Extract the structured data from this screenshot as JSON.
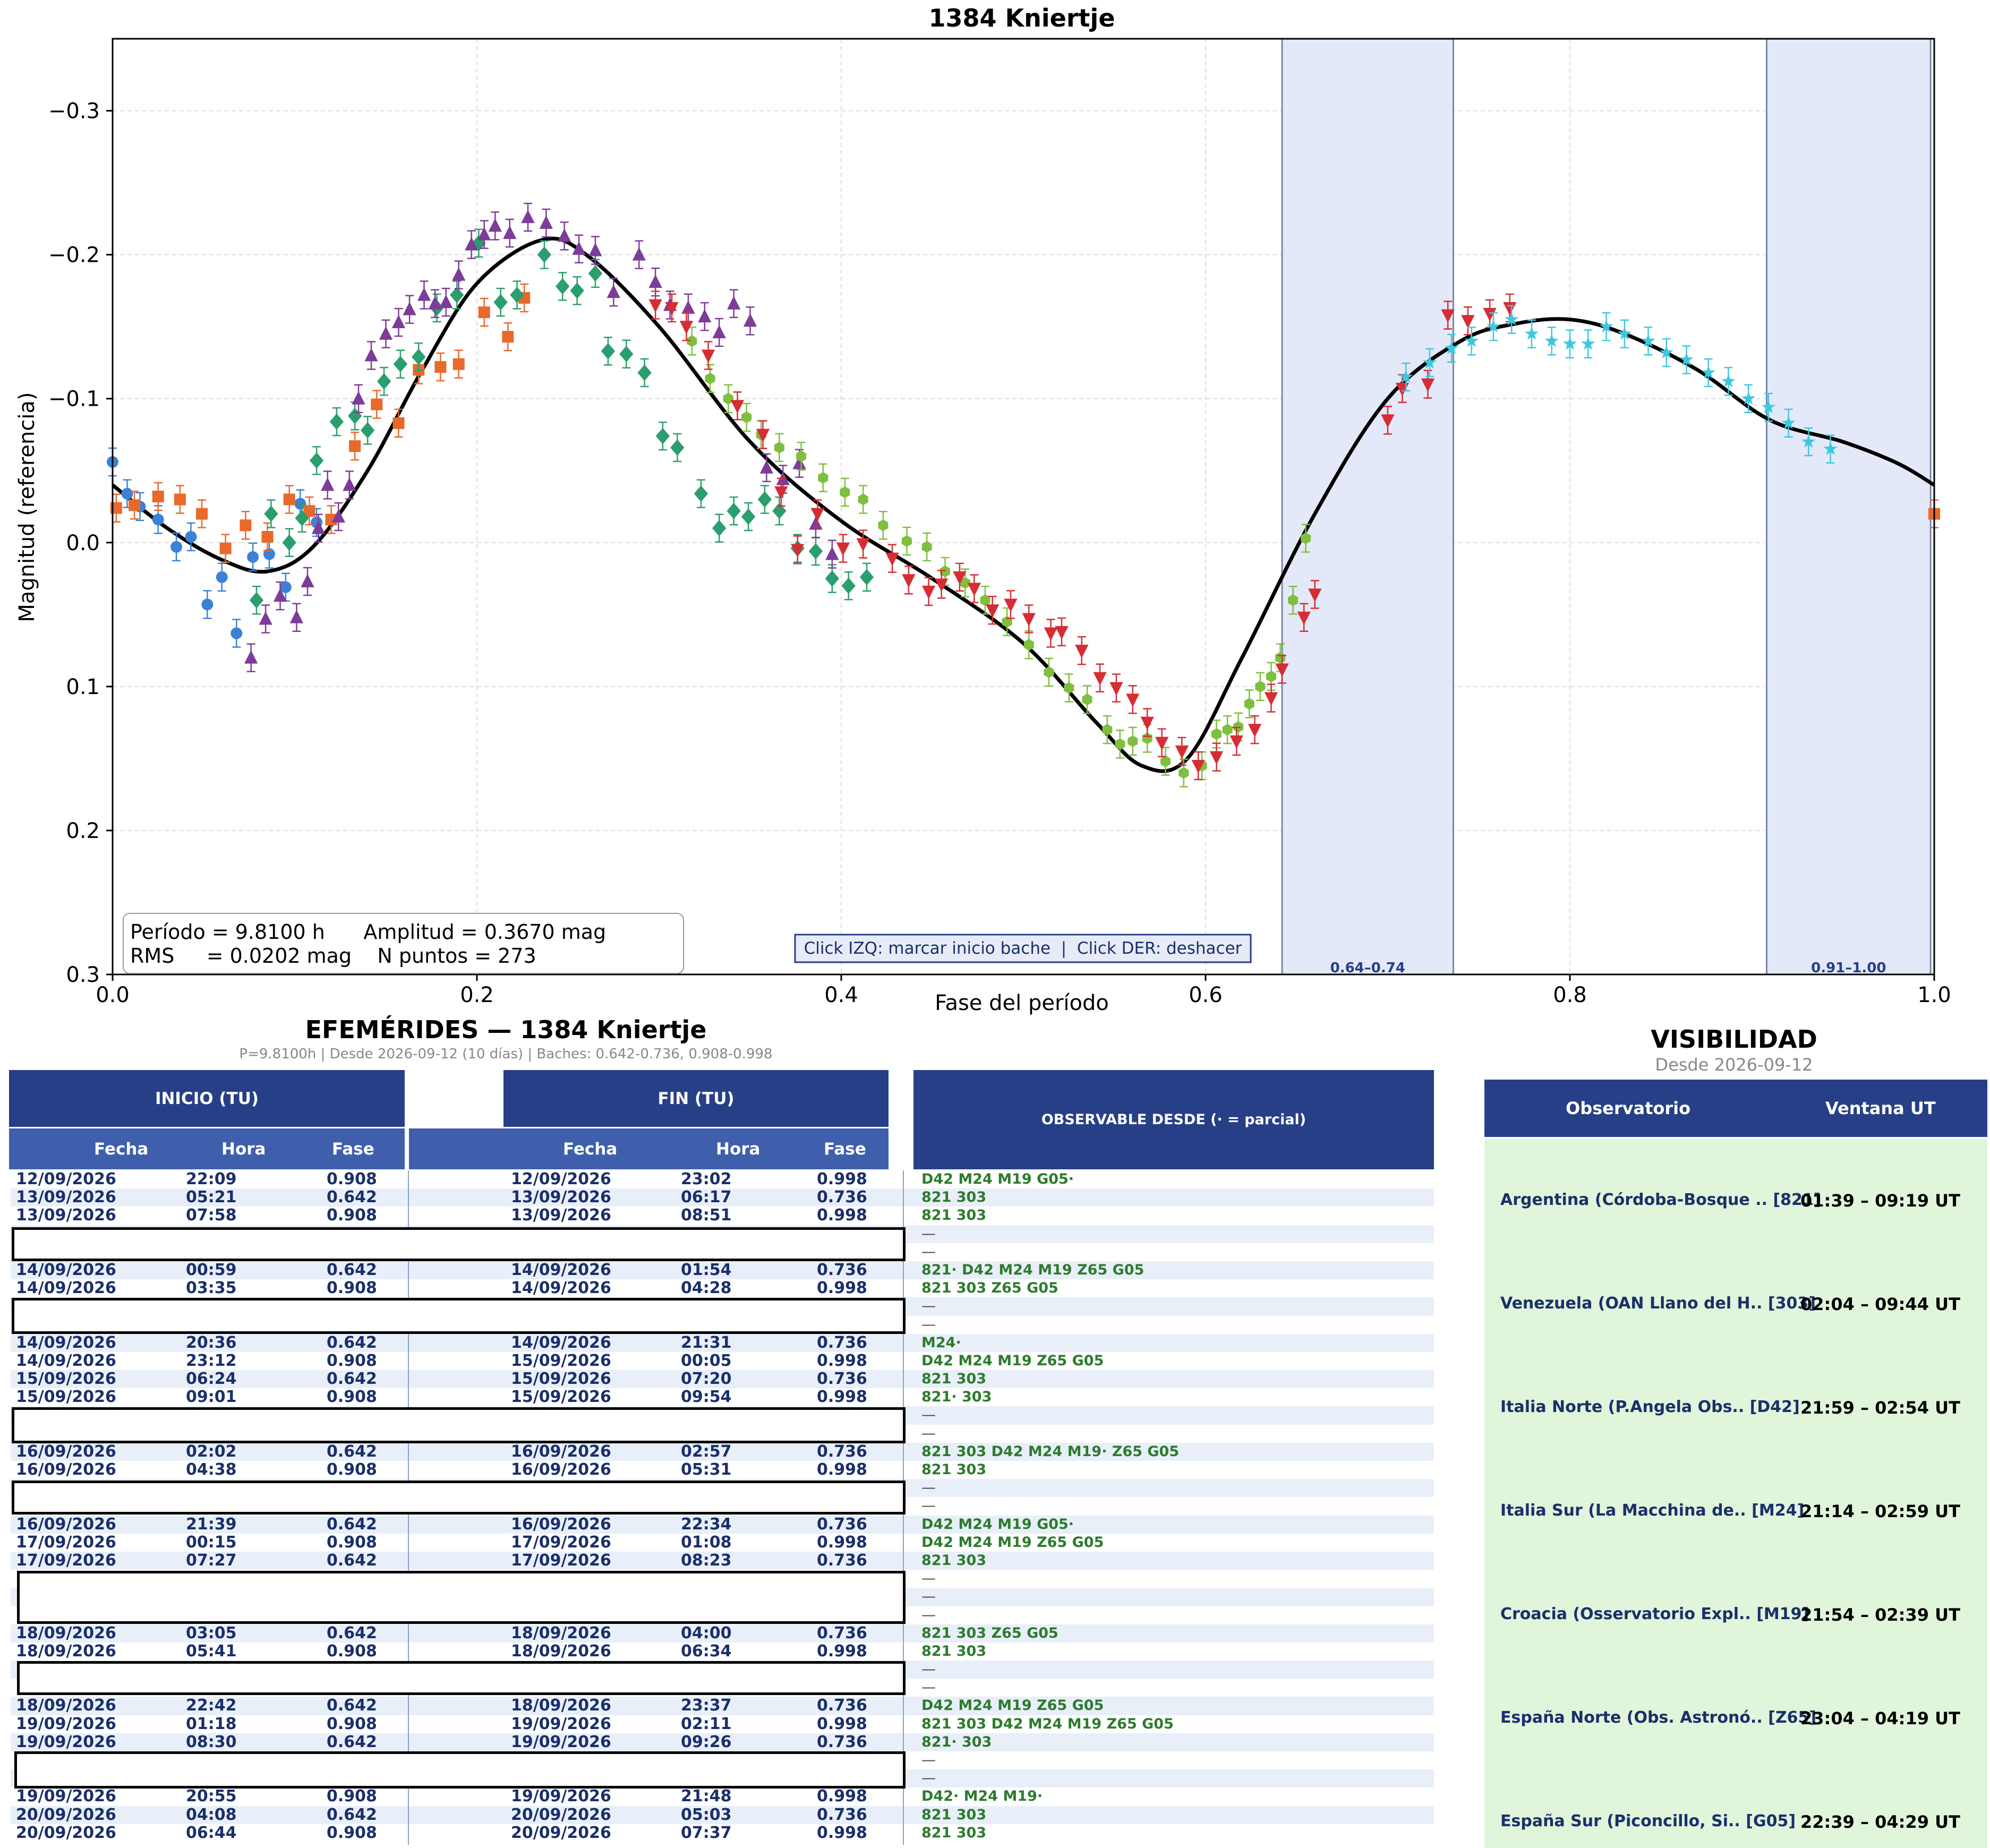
{
  "chart_data": {
    "type": "scatter",
    "title": "1384 Kniertje",
    "xlabel": "Fase del período",
    "ylabel": "Magnitud (referencia)",
    "xlim": [
      0.0,
      1.0
    ],
    "ylim": [
      0.3,
      -0.35
    ],
    "y_inverted": true,
    "grid": true,
    "x_ticks": [
      "0.0",
      "0.2",
      "0.4",
      "0.6",
      "0.8",
      "1.0"
    ],
    "y_ticks": [
      "−0.3",
      "−0.2",
      "−0.1",
      "0.0",
      "0.1",
      "0.2",
      "0.3"
    ],
    "info_box": {
      "line1": "Período = 9.8100 h      Amplitud = 0.3670 mag",
      "line2": "RMS     = 0.0202 mag    N puntos = 273"
    },
    "hint": "Click IZQ: marcar inicio bache  |  Click DER: deshacer",
    "gaps": [
      {
        "start": 0.642,
        "end": 0.736,
        "label": "0.64–0.74"
      },
      {
        "start": 0.908,
        "end": 0.998,
        "label": "0.91–1.00"
      }
    ],
    "fit_curve": {
      "x": [
        0.0,
        0.03,
        0.06,
        0.085,
        0.11,
        0.14,
        0.17,
        0.2,
        0.235,
        0.26,
        0.3,
        0.35,
        0.4,
        0.45,
        0.5,
        0.54,
        0.565,
        0.59,
        0.62,
        0.66,
        0.7,
        0.74,
        0.77,
        0.8,
        0.83,
        0.87,
        0.91,
        0.95,
        0.98,
        1.0
      ],
      "y": [
        -0.04,
        -0.01,
        0.012,
        0.02,
        0.003,
        -0.05,
        -0.12,
        -0.18,
        -0.21,
        -0.2,
        -0.15,
        -0.07,
        -0.015,
        0.025,
        0.07,
        0.125,
        0.155,
        0.15,
        0.08,
        -0.02,
        -0.1,
        -0.14,
        -0.152,
        -0.155,
        -0.145,
        -0.12,
        -0.085,
        -0.07,
        -0.055,
        -0.04
      ]
    },
    "series": [
      {
        "marker": "circle",
        "color": "#3b82d6",
        "x": [
          0.0,
          0.008,
          0.015,
          0.025,
          0.035,
          0.043,
          0.052,
          0.06,
          0.068,
          0.077,
          0.086,
          0.095,
          0.103,
          0.112
        ],
        "y": [
          -0.056,
          -0.034,
          -0.025,
          -0.016,
          0.003,
          -0.004,
          0.043,
          0.024,
          0.063,
          0.01,
          0.008,
          0.031,
          -0.027,
          -0.014
        ]
      },
      {
        "marker": "square",
        "color": "#e8692b",
        "x": [
          0.002,
          0.012,
          0.025,
          0.037,
          0.049,
          0.062,
          0.073,
          0.085,
          0.097,
          0.108,
          0.12,
          0.133,
          0.145,
          0.157,
          0.168,
          0.18,
          0.19,
          0.204,
          0.217,
          0.226,
          1.0
        ],
        "y": [
          -0.024,
          -0.026,
          -0.032,
          -0.03,
          -0.02,
          0.004,
          -0.012,
          -0.004,
          -0.03,
          -0.022,
          -0.016,
          -0.067,
          -0.096,
          -0.083,
          -0.12,
          -0.122,
          -0.124,
          -0.16,
          -0.143,
          -0.17,
          -0.02
        ]
      },
      {
        "marker": "diamond",
        "color": "#2b9e6e",
        "x": [
          0.079,
          0.087,
          0.097,
          0.104,
          0.112,
          0.123,
          0.133,
          0.14,
          0.149,
          0.158,
          0.168,
          0.178,
          0.189,
          0.201,
          0.213,
          0.222,
          0.237,
          0.247,
          0.255,
          0.265,
          0.272,
          0.282,
          0.292,
          0.302,
          0.31,
          0.323,
          0.333,
          0.341,
          0.349,
          0.358,
          0.366,
          0.376,
          0.386,
          0.395,
          0.404,
          0.414
        ],
        "y": [
          0.04,
          -0.02,
          0.0,
          -0.017,
          -0.057,
          -0.084,
          -0.088,
          -0.078,
          -0.112,
          -0.124,
          -0.129,
          -0.163,
          -0.172,
          -0.208,
          -0.167,
          -0.172,
          -0.2,
          -0.178,
          -0.175,
          -0.187,
          -0.133,
          -0.131,
          -0.118,
          -0.074,
          -0.066,
          -0.034,
          -0.01,
          -0.022,
          -0.018,
          -0.03,
          -0.022,
          0.004,
          0.006,
          0.025,
          0.03,
          0.024
        ]
      },
      {
        "marker": "triangle-up",
        "color": "#7d3c98",
        "x": [
          0.076,
          0.084,
          0.092,
          0.101,
          0.107,
          0.113,
          0.118,
          0.124,
          0.13,
          0.135,
          0.142,
          0.15,
          0.157,
          0.163,
          0.171,
          0.177,
          0.183,
          0.19,
          0.197,
          0.204,
          0.21,
          0.218,
          0.228,
          0.238,
          0.248,
          0.256,
          0.265,
          0.275,
          0.289,
          0.298,
          0.306,
          0.316,
          0.325,
          0.333,
          0.341,
          0.35,
          0.359,
          0.368,
          0.377,
          0.386,
          0.395
        ],
        "y": [
          0.08,
          0.053,
          0.037,
          0.052,
          0.027,
          -0.01,
          -0.04,
          -0.018,
          -0.04,
          -0.1,
          -0.13,
          -0.145,
          -0.153,
          -0.162,
          -0.172,
          -0.166,
          -0.167,
          -0.186,
          -0.207,
          -0.214,
          -0.22,
          -0.215,
          -0.226,
          -0.222,
          -0.213,
          -0.204,
          -0.203,
          -0.174,
          -0.2,
          -0.181,
          -0.165,
          -0.163,
          -0.157,
          -0.146,
          -0.166,
          -0.154,
          -0.052,
          -0.044,
          -0.055,
          -0.013,
          0.008
        ]
      },
      {
        "marker": "hexagon",
        "color": "#7fbf3f",
        "x": [
          0.318,
          0.328,
          0.338,
          0.348,
          0.356,
          0.366,
          0.378,
          0.39,
          0.402,
          0.412,
          0.423,
          0.436,
          0.447,
          0.457,
          0.468,
          0.479,
          0.491,
          0.503,
          0.514,
          0.525,
          0.535,
          0.546,
          0.553,
          0.56,
          0.568,
          0.578,
          0.588,
          0.598,
          0.606,
          0.612,
          0.618,
          0.624,
          0.63,
          0.636,
          0.641,
          0.648,
          0.655
        ],
        "y": [
          -0.14,
          -0.114,
          -0.1,
          -0.087,
          -0.075,
          -0.066,
          -0.06,
          -0.045,
          -0.035,
          -0.03,
          -0.012,
          -0.001,
          0.003,
          0.02,
          0.028,
          0.04,
          0.055,
          0.071,
          0.09,
          0.101,
          0.109,
          0.13,
          0.14,
          0.138,
          0.136,
          0.152,
          0.16,
          0.155,
          0.133,
          0.13,
          0.128,
          0.112,
          0.1,
          0.093,
          0.08,
          0.04,
          -0.003
        ]
      },
      {
        "marker": "triangle-down",
        "color": "#d62d34",
        "x": [
          0.298,
          0.307,
          0.315,
          0.327,
          0.343,
          0.357,
          0.367,
          0.376,
          0.387,
          0.401,
          0.412,
          0.428,
          0.437,
          0.448,
          0.455,
          0.465,
          0.473,
          0.483,
          0.493,
          0.503,
          0.515,
          0.521,
          0.532,
          0.542,
          0.551,
          0.56,
          0.568,
          0.576,
          0.587,
          0.596,
          0.606,
          0.617,
          0.627,
          0.636,
          0.642,
          0.654,
          0.66,
          0.7,
          0.708,
          0.722,
          0.733,
          0.744,
          0.756,
          0.767
        ],
        "y": [
          -0.165,
          -0.163,
          -0.15,
          -0.13,
          -0.095,
          -0.075,
          -0.035,
          0.005,
          -0.02,
          0.004,
          0.001,
          0.011,
          0.026,
          0.034,
          0.029,
          0.024,
          0.032,
          0.047,
          0.043,
          0.053,
          0.063,
          0.062,
          0.075,
          0.094,
          0.101,
          0.109,
          0.125,
          0.139,
          0.145,
          0.155,
          0.149,
          0.138,
          0.13,
          0.108,
          0.088,
          0.052,
          0.036,
          -0.085,
          -0.107,
          -0.11,
          -0.158,
          -0.154,
          -0.159,
          -0.163
        ]
      },
      {
        "marker": "star",
        "color": "#3ec8e0",
        "x": [
          0.71,
          0.723,
          0.735,
          0.746,
          0.758,
          0.768,
          0.779,
          0.79,
          0.8,
          0.81,
          0.82,
          0.83,
          0.843,
          0.853,
          0.864,
          0.876,
          0.887,
          0.898,
          0.909,
          0.92,
          0.931,
          0.943
        ],
        "y": [
          -0.115,
          -0.125,
          -0.135,
          -0.14,
          -0.15,
          -0.155,
          -0.145,
          -0.14,
          -0.138,
          -0.138,
          -0.15,
          -0.145,
          -0.14,
          -0.132,
          -0.127,
          -0.118,
          -0.112,
          -0.1,
          -0.094,
          -0.083,
          -0.07,
          -0.065
        ]
      }
    ]
  },
  "ephemerides": {
    "title": "EFEMÉRIDES — 1384 Kniertje",
    "subtitle": "P=9.8100h  |  Desde 2026-09-12 (10 días)  |  Baches: 0.642-0.736, 0.908-0.998",
    "inicio": "INICIO (TU)",
    "fin": "FIN (TU)",
    "observable": "OBSERVABLE DESDE  (· = parcial)",
    "col_fecha": "Fecha",
    "col_hora": "Hora",
    "col_fase": "Fase",
    "rows": [
      {
        "d1": "12/09/2026",
        "h1": "22:09",
        "f1": "0.908",
        "d2": "12/09/2026",
        "h2": "23:02",
        "f2": "0.998",
        "obs": "D42 M24 M19 G05·"
      },
      {
        "d1": "13/09/2026",
        "h1": "05:21",
        "f1": "0.642",
        "d2": "13/09/2026",
        "h2": "06:17",
        "f2": "0.736",
        "obs": "821 303"
      },
      {
        "d1": "13/09/2026",
        "h1": "07:58",
        "f1": "0.908",
        "d2": "13/09/2026",
        "h2": "08:51",
        "f2": "0.998",
        "obs": "821 303"
      },
      {
        "d1": "",
        "h1": "",
        "f1": "",
        "d2": "",
        "h2": "",
        "f2": "",
        "obs": "—"
      },
      {
        "d1": "",
        "h1": "",
        "f1": "",
        "d2": "",
        "h2": "",
        "f2": "",
        "obs": "—"
      },
      {
        "d1": "14/09/2026",
        "h1": "00:59",
        "f1": "0.642",
        "d2": "14/09/2026",
        "h2": "01:54",
        "f2": "0.736",
        "obs": "821· D42 M24 M19 Z65 G05"
      },
      {
        "d1": "14/09/2026",
        "h1": "03:35",
        "f1": "0.908",
        "d2": "14/09/2026",
        "h2": "04:28",
        "f2": "0.998",
        "obs": "821 303 Z65 G05"
      },
      {
        "d1": "",
        "h1": "",
        "f1": "",
        "d2": "",
        "h2": "",
        "f2": "",
        "obs": "—"
      },
      {
        "d1": "",
        "h1": "",
        "f1": "",
        "d2": "",
        "h2": "",
        "f2": "",
        "obs": "—"
      },
      {
        "d1": "14/09/2026",
        "h1": "20:36",
        "f1": "0.642",
        "d2": "14/09/2026",
        "h2": "21:31",
        "f2": "0.736",
        "obs": "M24·"
      },
      {
        "d1": "14/09/2026",
        "h1": "23:12",
        "f1": "0.908",
        "d2": "15/09/2026",
        "h2": "00:05",
        "f2": "0.998",
        "obs": "D42 M24 M19 Z65 G05"
      },
      {
        "d1": "15/09/2026",
        "h1": "06:24",
        "f1": "0.642",
        "d2": "15/09/2026",
        "h2": "07:20",
        "f2": "0.736",
        "obs": "821 303"
      },
      {
        "d1": "15/09/2026",
        "h1": "09:01",
        "f1": "0.908",
        "d2": "15/09/2026",
        "h2": "09:54",
        "f2": "0.998",
        "obs": "821· 303"
      },
      {
        "d1": "",
        "h1": "",
        "f1": "",
        "d2": "",
        "h2": "",
        "f2": "",
        "obs": "—"
      },
      {
        "d1": "",
        "h1": "",
        "f1": "",
        "d2": "",
        "h2": "",
        "f2": "",
        "obs": "—"
      },
      {
        "d1": "16/09/2026",
        "h1": "02:02",
        "f1": "0.642",
        "d2": "16/09/2026",
        "h2": "02:57",
        "f2": "0.736",
        "obs": "821 303 D42 M24 M19· Z65 G05"
      },
      {
        "d1": "16/09/2026",
        "h1": "04:38",
        "f1": "0.908",
        "d2": "16/09/2026",
        "h2": "05:31",
        "f2": "0.998",
        "obs": "821 303"
      },
      {
        "d1": "",
        "h1": "",
        "f1": "",
        "d2": "",
        "h2": "",
        "f2": "",
        "obs": "—"
      },
      {
        "d1": "",
        "h1": "",
        "f1": "",
        "d2": "",
        "h2": "",
        "f2": "",
        "obs": "—"
      },
      {
        "d1": "16/09/2026",
        "h1": "21:39",
        "f1": "0.642",
        "d2": "16/09/2026",
        "h2": "22:34",
        "f2": "0.736",
        "obs": "D42 M24 M19 G05·"
      },
      {
        "d1": "17/09/2026",
        "h1": "00:15",
        "f1": "0.908",
        "d2": "17/09/2026",
        "h2": "01:08",
        "f2": "0.998",
        "obs": "D42 M24 M19 Z65 G05"
      },
      {
        "d1": "17/09/2026",
        "h1": "07:27",
        "f1": "0.642",
        "d2": "17/09/2026",
        "h2": "08:23",
        "f2": "0.736",
        "obs": "821 303"
      },
      {
        "d1": "",
        "h1": "",
        "f1": "",
        "d2": "",
        "h2": "",
        "f2": "",
        "obs": "—"
      },
      {
        "d1": "",
        "h1": "",
        "f1": "",
        "d2": "",
        "h2": "",
        "f2": "",
        "obs": "—"
      },
      {
        "d1": "",
        "h1": "",
        "f1": "",
        "d2": "",
        "h2": "",
        "f2": "",
        "obs": "—"
      },
      {
        "d1": "18/09/2026",
        "h1": "03:05",
        "f1": "0.642",
        "d2": "18/09/2026",
        "h2": "04:00",
        "f2": "0.736",
        "obs": "821 303 Z65 G05"
      },
      {
        "d1": "18/09/2026",
        "h1": "05:41",
        "f1": "0.908",
        "d2": "18/09/2026",
        "h2": "06:34",
        "f2": "0.998",
        "obs": "821 303"
      },
      {
        "d1": "",
        "h1": "",
        "f1": "",
        "d2": "",
        "h2": "",
        "f2": "",
        "obs": "—"
      },
      {
        "d1": "",
        "h1": "",
        "f1": "",
        "d2": "",
        "h2": "",
        "f2": "",
        "obs": "—"
      },
      {
        "d1": "18/09/2026",
        "h1": "22:42",
        "f1": "0.642",
        "d2": "18/09/2026",
        "h2": "23:37",
        "f2": "0.736",
        "obs": "D42 M24 M19 Z65 G05"
      },
      {
        "d1": "19/09/2026",
        "h1": "01:18",
        "f1": "0.908",
        "d2": "19/09/2026",
        "h2": "02:11",
        "f2": "0.998",
        "obs": "821 303 D42 M24 M19 Z65 G05"
      },
      {
        "d1": "19/09/2026",
        "h1": "08:30",
        "f1": "0.642",
        "d2": "19/09/2026",
        "h2": "09:26",
        "f2": "0.736",
        "obs": "821· 303"
      },
      {
        "d1": "",
        "h1": "",
        "f1": "",
        "d2": "",
        "h2": "",
        "f2": "",
        "obs": "—"
      },
      {
        "d1": "",
        "h1": "",
        "f1": "",
        "d2": "",
        "h2": "",
        "f2": "",
        "obs": "—"
      },
      {
        "d1": "19/09/2026",
        "h1": "20:55",
        "f1": "0.908",
        "d2": "19/09/2026",
        "h2": "21:48",
        "f2": "0.998",
        "obs": "D42· M24 M19·"
      },
      {
        "d1": "20/09/2026",
        "h1": "04:08",
        "f1": "0.642",
        "d2": "20/09/2026",
        "h2": "05:03",
        "f2": "0.736",
        "obs": "821 303"
      },
      {
        "d1": "20/09/2026",
        "h1": "06:44",
        "f1": "0.908",
        "d2": "20/09/2026",
        "h2": "07:37",
        "f2": "0.998",
        "obs": "821 303"
      }
    ]
  },
  "visibility": {
    "title": "VISIBILIDAD",
    "subtitle": "Desde 2026-09-12",
    "col_obs": "Observatorio",
    "col_win": "Ventana UT",
    "rows": [
      {
        "name": "Argentina (Córdoba-Bosque .. [821]",
        "window": "01:39 – 09:19 UT"
      },
      {
        "name": "Venezuela (OAN Llano del H.. [303]",
        "window": "02:04 – 09:44 UT"
      },
      {
        "name": "Italia Norte (P.Angela Obs.. [D42]",
        "window": "21:59 – 02:54 UT"
      },
      {
        "name": "Italia Sur (La Macchina de.. [M24]",
        "window": "21:14 – 02:59 UT"
      },
      {
        "name": "Croacia (Osservatorio Expl.. [M19]",
        "window": "21:54 – 02:39 UT"
      },
      {
        "name": "España Norte (Obs. Astronó.. [Z65]",
        "window": "23:04 – 04:19 UT"
      },
      {
        "name": "España Sur (Piconcillo, Si.. [G05]",
        "window": "22:39 – 04:29 UT"
      }
    ]
  }
}
